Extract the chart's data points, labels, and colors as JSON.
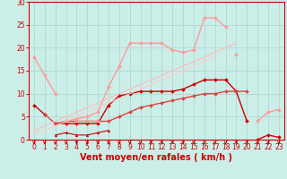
{
  "xlabel": "Vent moyen/en rafales ( km/h )",
  "xlim": [
    -0.5,
    23.5
  ],
  "ylim": [
    0,
    30
  ],
  "yticks": [
    0,
    5,
    10,
    15,
    20,
    25,
    30
  ],
  "xticks": [
    0,
    1,
    2,
    3,
    4,
    5,
    6,
    7,
    8,
    9,
    10,
    11,
    12,
    13,
    14,
    15,
    16,
    17,
    18,
    19,
    20,
    21,
    22,
    23
  ],
  "bg_color": "#cceee8",
  "grid_color": "#aad4cc",
  "series": [
    {
      "x": [
        0,
        1
      ],
      "y": [
        7.5,
        5.5
      ],
      "color": "#cc0000",
      "lw": 1.0,
      "marker": "D",
      "ms": 2.0
    },
    {
      "x": [
        2,
        3,
        4,
        5,
        6,
        7,
        8,
        9,
        10,
        11,
        12,
        13,
        14,
        15,
        16,
        17,
        18,
        19,
        20
      ],
      "y": [
        3.5,
        3.5,
        3.5,
        3.5,
        3.5,
        7.5,
        9.5,
        10,
        10.5,
        10.5,
        10.5,
        10.5,
        11,
        12,
        13,
        13,
        13,
        10.5,
        4
      ],
      "color": "#cc0000",
      "lw": 1.0,
      "marker": "D",
      "ms": 2.0
    },
    {
      "x": [
        21,
        22,
        23
      ],
      "y": [
        0,
        1,
        0.5
      ],
      "color": "#cc0000",
      "lw": 1.0,
      "marker": "D",
      "ms": 2.0
    },
    {
      "x": [
        2,
        3,
        4,
        5,
        6,
        7
      ],
      "y": [
        1,
        1.5,
        1,
        1,
        1.5,
        2
      ],
      "color": "#cc0000",
      "lw": 0.8,
      "marker": "^",
      "ms": 2.0
    },
    {
      "x": [
        1,
        2,
        3,
        4,
        5,
        6,
        7,
        8,
        9,
        10,
        11,
        12,
        13,
        14,
        15,
        16,
        17,
        18,
        19,
        20
      ],
      "y": [
        5.5,
        3.5,
        4,
        4,
        4,
        4,
        4,
        5,
        6,
        7,
        7.5,
        8,
        8.5,
        9,
        9.5,
        10,
        10,
        10.5,
        10.5,
        10.5
      ],
      "color": "#dd4444",
      "lw": 1.0,
      "marker": "D",
      "ms": 2.0
    },
    {
      "x": [
        0,
        1,
        2
      ],
      "y": [
        18,
        14,
        10
      ],
      "color": "#ff9999",
      "lw": 1.0,
      "marker": "D",
      "ms": 2.0
    },
    {
      "x": [
        4,
        5,
        6
      ],
      "y": [
        4,
        4,
        4
      ],
      "color": "#ff9999",
      "lw": 1.0,
      "marker": "D",
      "ms": 2.0
    },
    {
      "x": [
        3,
        4,
        5,
        6,
        7,
        8,
        9,
        10,
        11,
        12,
        13,
        14,
        15,
        16,
        17,
        18
      ],
      "y": [
        4,
        4.5,
        5,
        6,
        11.5,
        16,
        21,
        21,
        21,
        21,
        19.5,
        19,
        19.5,
        26.5,
        26.5,
        24.5
      ],
      "color": "#ff9999",
      "lw": 1.0,
      "marker": "D",
      "ms": 2.0
    },
    {
      "x": [
        19
      ],
      "y": [
        18.5
      ],
      "color": "#ff9999",
      "lw": 1.0,
      "marker": "D",
      "ms": 2.0
    },
    {
      "x": [
        21,
        22,
        23
      ],
      "y": [
        4,
        6,
        6.5
      ],
      "color": "#ff9999",
      "lw": 1.0,
      "marker": "D",
      "ms": 2.0
    },
    {
      "x": [
        0,
        1,
        2,
        3,
        4,
        5,
        6,
        7,
        8,
        9,
        10,
        11,
        12,
        13,
        14,
        15,
        16,
        17,
        18,
        19
      ],
      "y": [
        2,
        3,
        4,
        5,
        6,
        7,
        8,
        9,
        10,
        11,
        12,
        13,
        14,
        15,
        16,
        17,
        18,
        19,
        20,
        21
      ],
      "color": "#ffbbbb",
      "lw": 0.8,
      "marker": null,
      "ms": 0
    },
    {
      "x": [
        0,
        1,
        2,
        3,
        4,
        5,
        6,
        7,
        8,
        9,
        10,
        11,
        12,
        13,
        14,
        15,
        16,
        17
      ],
      "y": [
        1.5,
        2,
        3,
        4,
        5,
        6,
        7,
        8,
        9,
        10,
        11,
        12,
        13,
        14,
        15,
        16,
        17,
        18
      ],
      "color": "#ffcccc",
      "lw": 0.8,
      "marker": null,
      "ms": 0
    }
  ],
  "arrow_color": "#cc0000",
  "tick_fontsize": 5.5,
  "label_fontsize": 7
}
